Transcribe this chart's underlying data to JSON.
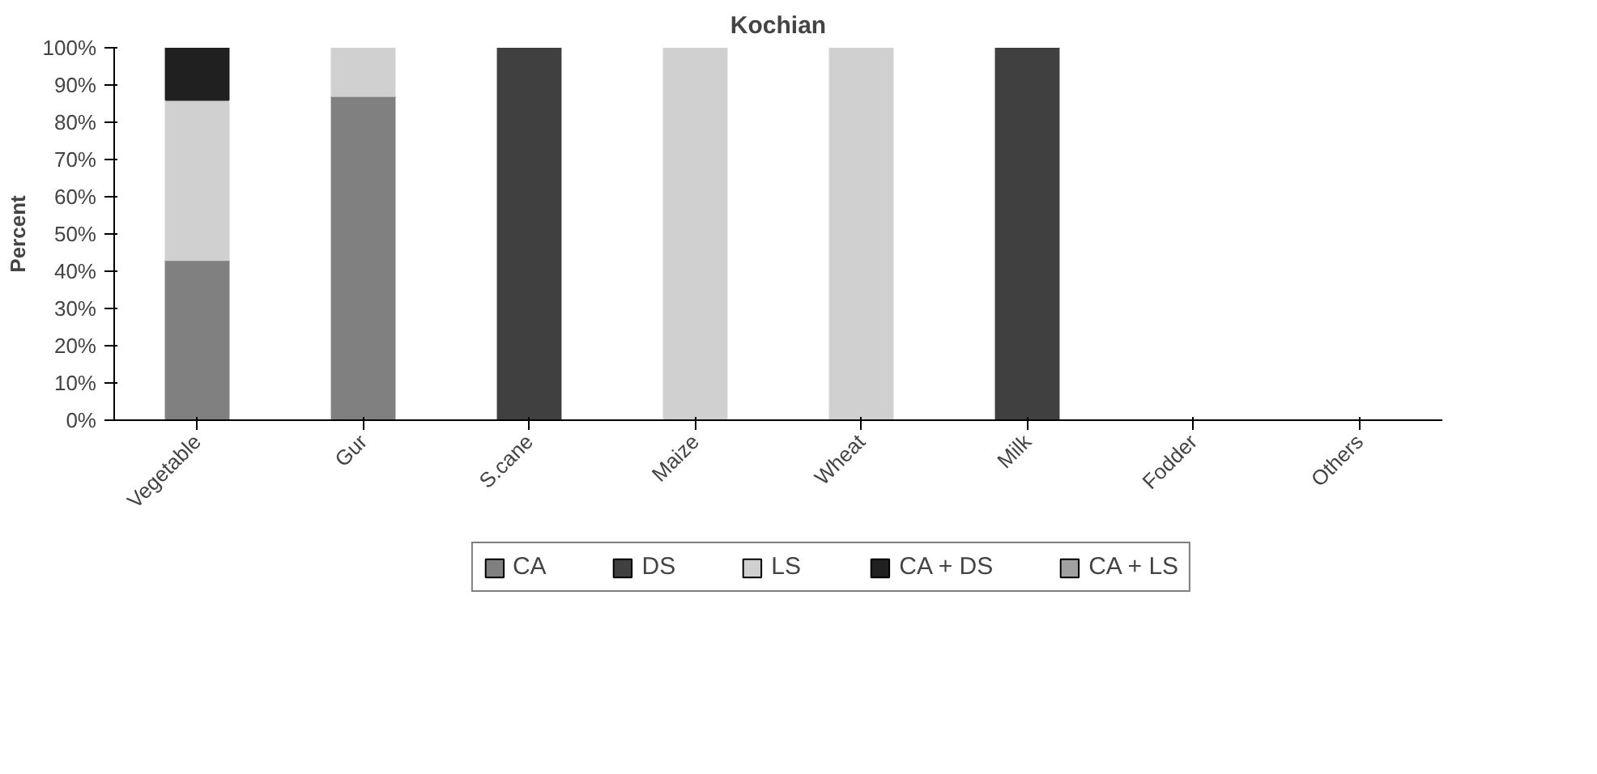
{
  "chart_data": {
    "type": "bar",
    "title": "Kochian",
    "ylabel": "Percent",
    "stacked": true,
    "categories": [
      "Vegetable",
      "Gur",
      "S.cane",
      "Maize",
      "Wheat",
      "Milk",
      "Fodder",
      "Others"
    ],
    "series": [
      {
        "name": "CA",
        "color": "#808080",
        "values": [
          43,
          87,
          0,
          0,
          0,
          0,
          0,
          0
        ]
      },
      {
        "name": "DS",
        "color": "#404040",
        "values": [
          0,
          0,
          100,
          0,
          0,
          100,
          0,
          0
        ]
      },
      {
        "name": "LS",
        "color": "#d0d0d0",
        "values": [
          43,
          13,
          0,
          100,
          100,
          0,
          0,
          0
        ]
      },
      {
        "name": "CA + DS",
        "color": "#202020",
        "values": [
          14,
          0,
          0,
          0,
          0,
          0,
          0,
          0
        ]
      },
      {
        "name": "CA + LS",
        "color": "#a0a0a0",
        "values": [
          0,
          0,
          0,
          0,
          0,
          0,
          0,
          0
        ]
      }
    ],
    "ylim": [
      0,
      100
    ],
    "yticks": [
      {
        "value": 0,
        "label": "0%"
      },
      {
        "value": 10,
        "label": "10%"
      },
      {
        "value": 20,
        "label": "20%"
      },
      {
        "value": 30,
        "label": "30%"
      },
      {
        "value": 40,
        "label": "40%"
      },
      {
        "value": 50,
        "label": "50%"
      },
      {
        "value": 60,
        "label": "60%"
      },
      {
        "value": 70,
        "label": "70%"
      },
      {
        "value": 80,
        "label": "80%"
      },
      {
        "value": 90,
        "label": "90%"
      },
      {
        "value": 100,
        "label": "100%"
      }
    ],
    "grid": false,
    "legend": "bottom"
  }
}
